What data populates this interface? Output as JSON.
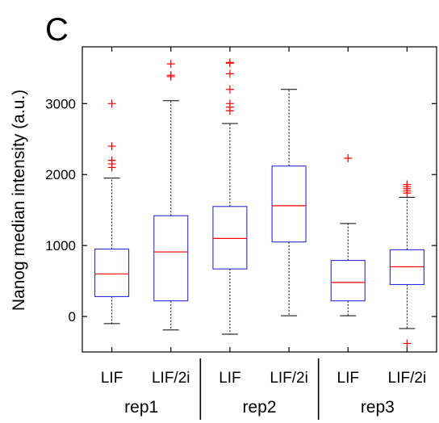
{
  "panel_label": "C",
  "chart_data": {
    "type": "box",
    "ylabel": "Nanog median intensity (a.u.)",
    "ylim": [
      -500,
      3800
    ],
    "yticks": [
      0,
      1000,
      2000,
      3000
    ],
    "grid": false,
    "categories": [
      "LIF",
      "LIF/2i",
      "LIF",
      "LIF/2i",
      "LIF",
      "LIF/2i"
    ],
    "groups": [
      {
        "label": "rep1",
        "members": [
          0,
          1
        ]
      },
      {
        "label": "rep2",
        "members": [
          2,
          3
        ]
      },
      {
        "label": "rep3",
        "members": [
          4,
          5
        ]
      }
    ],
    "colors": {
      "box": "#2b2bdb",
      "median": "#ff0000",
      "outlier": "#ff0000",
      "whisker": "#000000"
    },
    "boxes": [
      {
        "whisker_low": -100,
        "q1": 280,
        "median": 600,
        "q3": 950,
        "whisker_high": 1950,
        "outliers": [
          2100,
          2150,
          2200,
          2400,
          3000
        ]
      },
      {
        "whisker_low": -190,
        "q1": 220,
        "median": 910,
        "q3": 1420,
        "whisker_high": 3040,
        "outliers": [
          3380,
          3400,
          3560
        ]
      },
      {
        "whisker_low": -250,
        "q1": 670,
        "median": 1100,
        "q3": 1550,
        "whisker_high": 2720,
        "outliers": [
          2900,
          2950,
          3000,
          3200,
          3420,
          3570,
          3580
        ]
      },
      {
        "whisker_low": 10,
        "q1": 1050,
        "median": 1560,
        "q3": 2120,
        "whisker_high": 3200,
        "outliers": []
      },
      {
        "whisker_low": 10,
        "q1": 220,
        "median": 480,
        "q3": 790,
        "whisker_high": 1310,
        "outliers": [
          2230
        ]
      },
      {
        "whisker_low": -170,
        "q1": 450,
        "median": 700,
        "q3": 940,
        "whisker_high": 1680,
        "outliers": [
          -380,
          1740,
          1770,
          1800,
          1830,
          1860
        ]
      }
    ]
  }
}
